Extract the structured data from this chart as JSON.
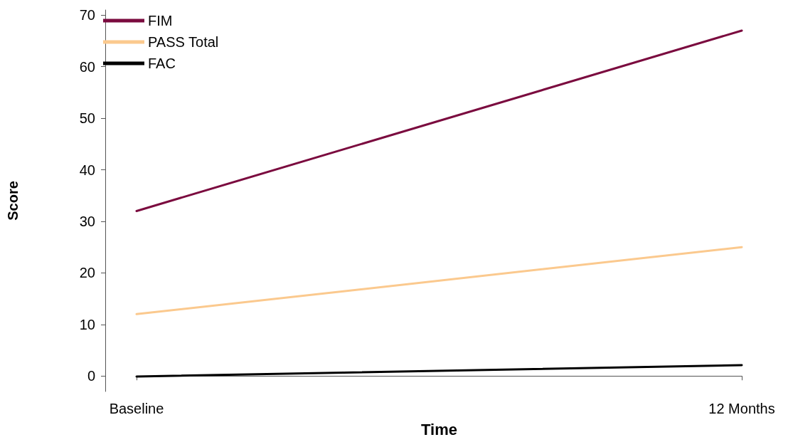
{
  "chart_data": {
    "type": "line",
    "xlabel": "Time",
    "ylabel": "Score",
    "categories": [
      "Baseline",
      "12 Months"
    ],
    "series": [
      {
        "name": "FIM",
        "color": "#7b0b3f",
        "values": [
          32,
          67
        ]
      },
      {
        "name": "PASS Total",
        "color": "#fbc98e",
        "values": [
          12,
          25
        ]
      },
      {
        "name": "FAC",
        "color": "#000000",
        "values": [
          -0.1,
          2.1
        ]
      }
    ],
    "ylim": [
      -3,
      71
    ],
    "yticks": [
      0,
      10,
      20,
      30,
      40,
      50,
      60,
      70
    ],
    "grid": false,
    "legend": "top left",
    "marker": "none",
    "line_style": "solid"
  }
}
